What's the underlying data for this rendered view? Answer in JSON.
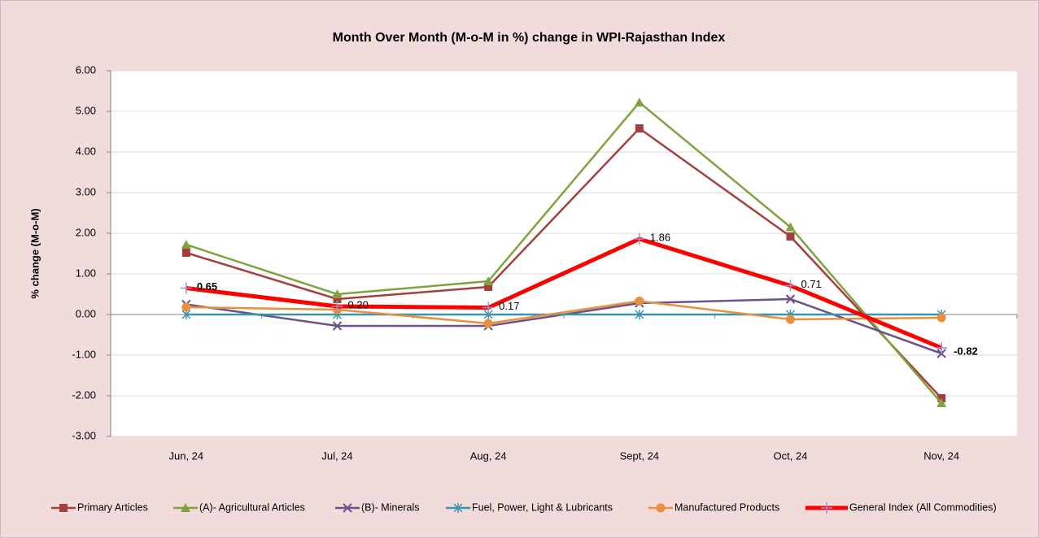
{
  "chart_data": {
    "type": "line",
    "title": "Month Over Month (M-o-M in %) change in WPI-Rajasthan Index",
    "y_label": "% change (M-o-M)",
    "categories": [
      "Jun, 24",
      "Jul, 24",
      "Aug, 24",
      "Sept, 24",
      "Oct, 24",
      "Nov, 24"
    ],
    "series": [
      {
        "name": "Primary Articles",
        "color": "#a33f3c",
        "marker": "square",
        "values": [
          1.52,
          0.38,
          0.68,
          4.58,
          1.92,
          -2.06
        ]
      },
      {
        "name": "(A)- Agricultural Articles",
        "color": "#80a23f",
        "marker": "triangle",
        "values": [
          1.72,
          0.5,
          0.82,
          5.22,
          2.15,
          -2.18
        ]
      },
      {
        "name": "(B)- Minerals",
        "color": "#6b5389",
        "marker": "x",
        "values": [
          0.25,
          -0.28,
          -0.28,
          0.28,
          0.38,
          -0.96
        ]
      },
      {
        "name": "Fuel, Power, Light & Lubricants",
        "color": "#3a94ae",
        "marker": "asterisk",
        "values": [
          0,
          0,
          0,
          0,
          0,
          0
        ]
      },
      {
        "name": "Manufactured Products",
        "color": "#e8903e",
        "marker": "circle",
        "values": [
          0.18,
          0.12,
          -0.22,
          0.33,
          -0.12,
          -0.08
        ]
      },
      {
        "name": "General Index (All Commodities)",
        "color": "#ff0000",
        "marker": "plus",
        "values": [
          0.65,
          0.2,
          0.17,
          1.86,
          0.71,
          -0.82
        ],
        "value_labels": [
          "0.65",
          "0.20",
          "0.17",
          "1.86",
          "0.71",
          "-0.82"
        ]
      }
    ],
    "ylim": [
      -3,
      6
    ],
    "yticks": [
      {
        "value": -3,
        "label": "-3.00"
      },
      {
        "value": -2,
        "label": "-2.00"
      },
      {
        "value": -1,
        "label": "-1.00"
      },
      {
        "value": 0,
        "label": "0.00"
      },
      {
        "value": 1,
        "label": "1.00"
      },
      {
        "value": 2,
        "label": "2.00"
      },
      {
        "value": 3,
        "label": "3.00"
      },
      {
        "value": 4,
        "label": "4.00"
      },
      {
        "value": 5,
        "label": "5.00"
      },
      {
        "value": 6,
        "label": "6.00"
      }
    ],
    "grid": true,
    "legend": "bottom"
  }
}
